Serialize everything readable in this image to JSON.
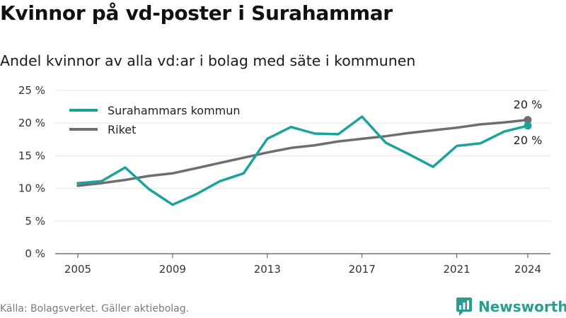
{
  "title": "Kvinnor på vd-poster i Surahammar",
  "subtitle": "Andel kvinnor av alla vd:ar i bolag med säte i kommunen",
  "source": "Källa: Bolagsverket. Gäller aktiebolag.",
  "brand": {
    "name": "Newsworthy",
    "icon": "bar-chart-logo-icon",
    "color": "#2a9d8f"
  },
  "chart_data": {
    "type": "line",
    "ylim": [
      0,
      25
    ],
    "yticks": [
      0,
      5,
      10,
      15,
      20,
      25
    ],
    "ytick_labels": [
      "0 %",
      "5 %",
      "10 %",
      "15 %",
      "20 %",
      "25 %"
    ],
    "xlim": [
      2005,
      2024
    ],
    "xticks": [
      2005,
      2009,
      2013,
      2017,
      2021,
      2024
    ],
    "grid": "horizontal",
    "legend_position": "top-left",
    "x": [
      2005,
      2006,
      2007,
      2008,
      2009,
      2010,
      2011,
      2012,
      2013,
      2014,
      2015,
      2016,
      2017,
      2018,
      2019,
      2020,
      2021,
      2022,
      2023,
      2024
    ],
    "series": [
      {
        "name": "Surahammars kommun",
        "color": "#1aa39a",
        "values": [
          10.8,
          11.1,
          13.2,
          9.9,
          7.5,
          9.1,
          11.1,
          12.3,
          17.6,
          19.4,
          18.4,
          18.3,
          21.0,
          17.0,
          15.2,
          13.3,
          16.5,
          16.9,
          18.7,
          19.6
        ],
        "end_label": "20 %"
      },
      {
        "name": "Riket",
        "color": "#6e6e6e",
        "values": [
          10.4,
          10.8,
          11.3,
          11.9,
          12.3,
          13.1,
          13.9,
          14.7,
          15.5,
          16.2,
          16.6,
          17.2,
          17.6,
          18.0,
          18.5,
          18.9,
          19.3,
          19.8,
          20.1,
          20.5
        ],
        "end_label": "20 %"
      }
    ]
  }
}
